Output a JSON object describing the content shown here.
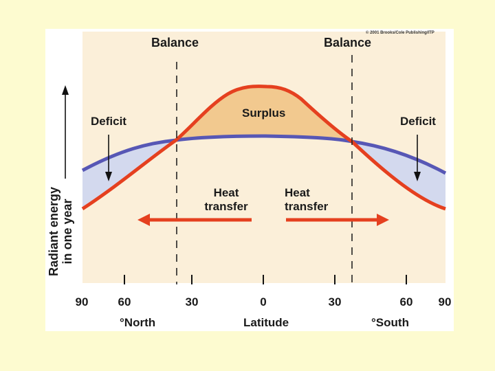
{
  "copyright": "© 2001 Brooks/Cole Publishing/ITP",
  "labels": {
    "balance_left": "Balance",
    "balance_right": "Balance",
    "surplus": "Surplus",
    "deficit_left": "Deficit",
    "deficit_right": "Deficit",
    "heat_transfer_left_line1": "Heat",
    "heat_transfer_left_line2": "transfer",
    "heat_transfer_right_line1": "Heat",
    "heat_transfer_right_line2": "transfer",
    "y_axis_line1": "Radiant energy",
    "y_axis_line2": "in one year",
    "north": "°North",
    "south": "°South",
    "x_axis": "Latitude"
  },
  "x_ticks": [
    "90",
    "60",
    "30",
    "0",
    "30",
    "60",
    "90"
  ],
  "colors": {
    "incoming": "#e5401f",
    "outgoing": "#5757b5",
    "surplus_fill": "#f2c98f",
    "deficit_fill": "#d3d9ee",
    "plot_bg": "#fbefd9",
    "page_bg": "#fdfbd0"
  }
}
